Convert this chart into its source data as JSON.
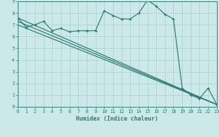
{
  "xlabel": "Humidex (Indice chaleur)",
  "bg_color": "#cde8e8",
  "line_color": "#2d7d74",
  "grid_color": "#aad4d0",
  "xlim": [
    0,
    23
  ],
  "ylim": [
    0,
    9
  ],
  "xticks": [
    0,
    1,
    2,
    3,
    4,
    5,
    6,
    7,
    8,
    9,
    10,
    11,
    12,
    13,
    14,
    15,
    16,
    17,
    18,
    19,
    20,
    21,
    22,
    23
  ],
  "yticks": [
    0,
    1,
    2,
    3,
    4,
    5,
    6,
    7,
    8,
    9
  ],
  "line1_x": [
    0,
    1,
    2,
    3,
    4,
    5,
    6,
    7,
    8,
    9,
    10,
    11,
    12,
    13,
    14,
    15,
    16,
    17,
    18,
    19,
    20,
    21,
    22,
    23
  ],
  "line1_y": [
    7.6,
    6.8,
    7.0,
    7.3,
    6.5,
    6.7,
    6.4,
    6.5,
    6.5,
    6.5,
    8.2,
    7.8,
    7.5,
    7.5,
    8.0,
    9.1,
    8.6,
    7.9,
    7.5,
    1.6,
    1.0,
    0.7,
    1.6,
    0.2
  ],
  "line2_x": [
    0,
    23
  ],
  "line2_y": [
    7.6,
    0.2
  ],
  "line3_x": [
    0,
    23
  ],
  "line3_y": [
    7.3,
    0.2
  ],
  "line4_x": [
    0,
    23
  ],
  "line4_y": [
    7.0,
    0.2
  ]
}
